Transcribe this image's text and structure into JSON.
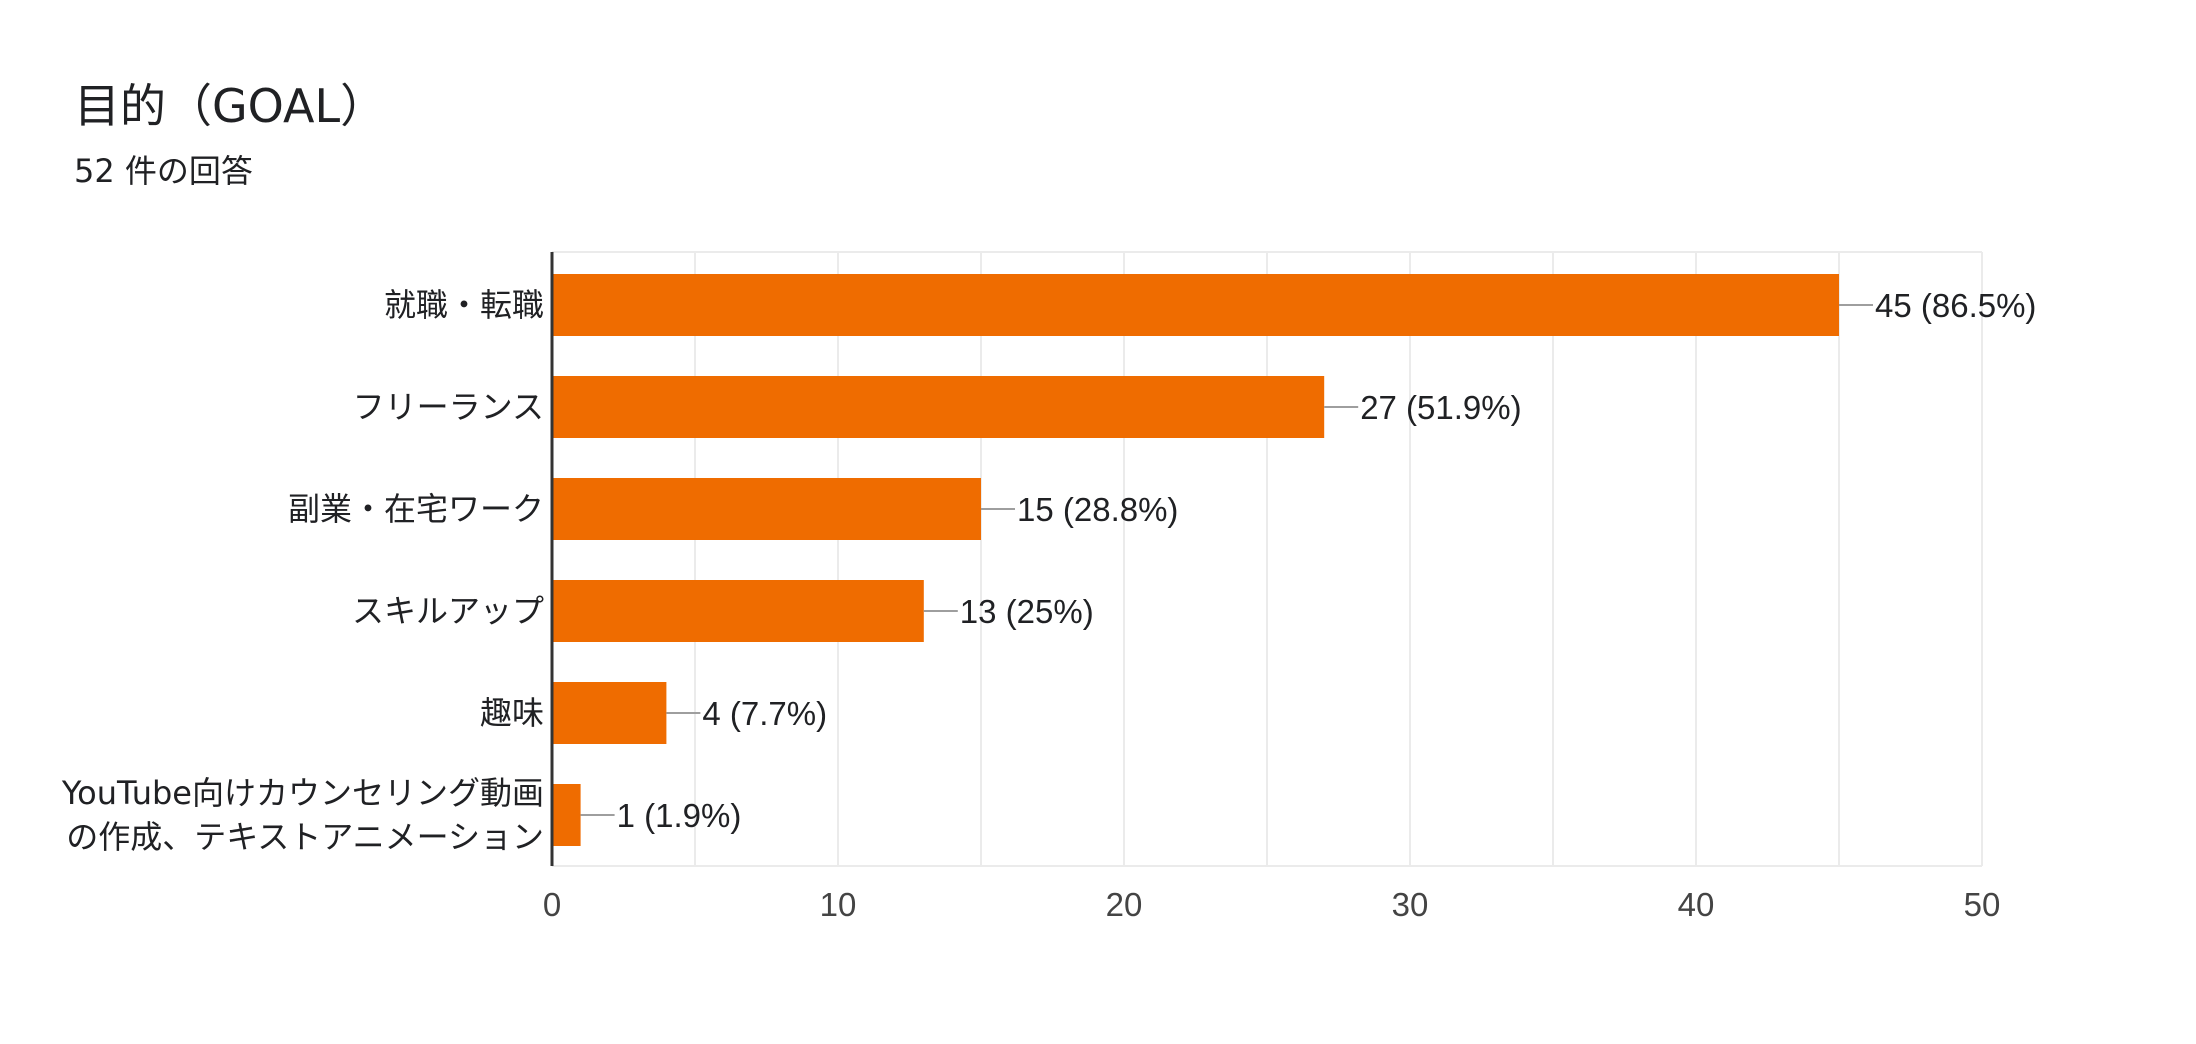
{
  "chart_data": {
    "type": "bar",
    "orientation": "horizontal",
    "title": "目的（GOAL）",
    "subtitle": "52 件の回答",
    "categories": [
      "就職・転職",
      "フリーランス",
      "副業・在宅ワーク",
      "スキルアップ",
      "趣味",
      "YouTube向けカウンセリング動画の作成、テキストアニメーション"
    ],
    "category_display_lines": [
      [
        "就職・転職"
      ],
      [
        "フリーランス"
      ],
      [
        "副業・在宅ワーク"
      ],
      [
        "スキルアップ"
      ],
      [
        "趣味"
      ],
      [
        "YouTube向けカウンセリング動画",
        "の作成、テキストアニメーション"
      ]
    ],
    "values": [
      45,
      27,
      15,
      13,
      4,
      1
    ],
    "value_labels": [
      "45 (86.5%)",
      "27 (51.9%)",
      "15 (28.8%)",
      "13 (25%)",
      "4 (7.7%)",
      "1 (1.9%)"
    ],
    "xlim": [
      0,
      50
    ],
    "x_ticks": [
      0,
      10,
      20,
      30,
      40,
      50
    ],
    "x_tick_labels": [
      "0",
      "10",
      "20",
      "30",
      "40",
      "50"
    ],
    "grid": true,
    "legend": "none",
    "bar_color": "#ef6c00",
    "grid_color": "#ebebeb",
    "axis_color": "#333333",
    "leader_color": "#9e9e9e"
  }
}
